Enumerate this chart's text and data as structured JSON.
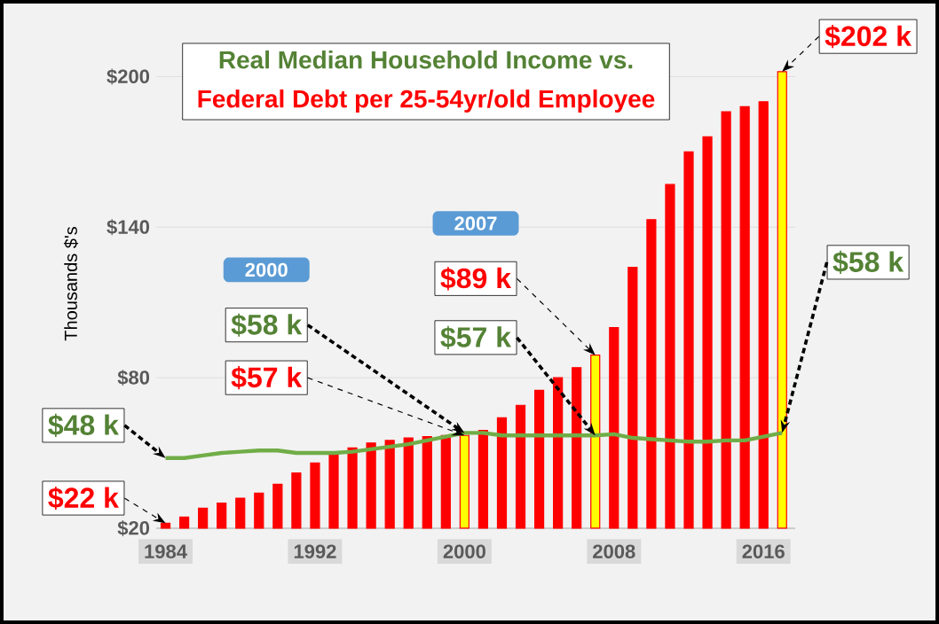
{
  "chart_data": {
    "type": "bar",
    "title": "Real Median Household Income vs.",
    "subtitle": "Federal Debt per 25-54yr/old Employee",
    "ylabel": "Thousands $'s",
    "x": [
      1984,
      1985,
      1986,
      1987,
      1988,
      1989,
      1990,
      1991,
      1992,
      1993,
      1994,
      1995,
      1996,
      1997,
      1998,
      1999,
      2000,
      2001,
      2002,
      2003,
      2004,
      2005,
      2006,
      2007,
      2008,
      2009,
      2010,
      2011,
      2012,
      2013,
      2014,
      2015,
      2016,
      2017
    ],
    "xlim": [
      1983.5,
      2017.7
    ],
    "ylim": [
      20,
      215
    ],
    "xticks": [
      1984,
      1992,
      2000,
      2008,
      2016
    ],
    "yticks": [
      {
        "value": 20,
        "label": "$20"
      },
      {
        "value": 80,
        "label": "$80"
      },
      {
        "value": 140,
        "label": "$140"
      },
      {
        "value": 200,
        "label": "$200"
      }
    ],
    "grid": "y",
    "series": [
      {
        "color": "#ff0000",
        "colors": [
          "#ff0000",
          "#ff0000",
          "#ff0000",
          "#ff0000",
          "#ff0000",
          "#ff0000",
          "#ff0000",
          "#ff0000",
          "#ff0000",
          "#ff0000",
          "#ff0000",
          "#ff0000",
          "#ff0000",
          "#ff0000",
          "#ff0000",
          "#ff0000",
          "#ffff00",
          "#ff0000",
          "#ff0000",
          "#ff0000",
          "#ff0000",
          "#ff0000",
          "#ff0000",
          "#ffff00",
          "#ff0000",
          "#ff0000",
          "#ff0000",
          "#ff0000",
          "#ff0000",
          "#ff0000",
          "#ff0000",
          "#ff0000",
          "#ff0000",
          "#ffff00"
        ],
        "values": [
          22,
          24.5,
          28,
          30,
          32,
          34,
          37.5,
          42,
          46,
          49.5,
          52,
          54,
          55,
          56,
          56.5,
          57,
          57,
          59,
          64,
          69,
          75,
          80,
          84,
          89,
          100,
          124,
          143,
          157,
          170,
          176,
          186,
          188,
          190,
          202
        ],
        "value_labels": [
          "$22 k",
          null,
          null,
          null,
          null,
          null,
          null,
          null,
          null,
          null,
          null,
          null,
          null,
          null,
          null,
          null,
          "$57 k",
          null,
          null,
          null,
          null,
          null,
          null,
          "$89 k",
          null,
          null,
          null,
          null,
          null,
          null,
          null,
          null,
          null,
          "$202 k"
        ]
      },
      {
        "type": "line",
        "color": "#70ad47",
        "values": [
          48,
          48,
          49,
          50,
          50.5,
          51,
          51,
          50,
          50,
          50,
          50.5,
          51.5,
          52.5,
          53.5,
          55,
          56.5,
          58,
          58,
          57,
          57,
          57,
          57,
          57,
          57,
          57.5,
          56,
          55.5,
          55,
          54.5,
          54.5,
          55,
          55,
          56.5,
          58
        ],
        "value_labels": [
          "$48 k",
          null,
          null,
          null,
          null,
          null,
          null,
          null,
          null,
          null,
          null,
          null,
          null,
          null,
          null,
          null,
          "$58 k",
          null,
          null,
          null,
          null,
          null,
          null,
          "$57 k",
          null,
          null,
          null,
          null,
          null,
          null,
          null,
          null,
          null,
          "$58 k"
        ]
      }
    ],
    "annotations": [
      "2000",
      "2007"
    ]
  }
}
